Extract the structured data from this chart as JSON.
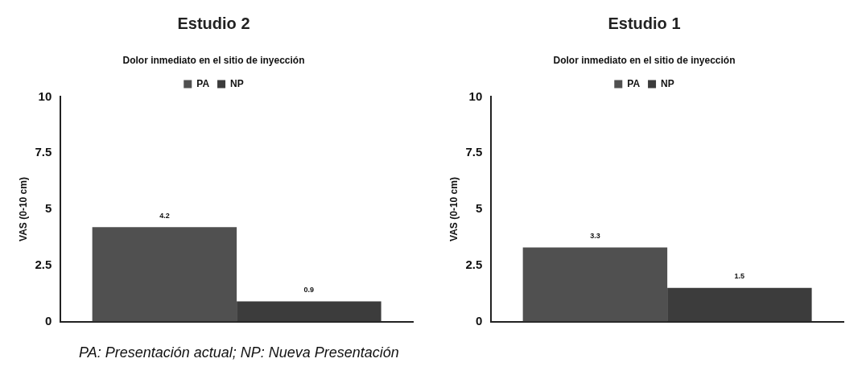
{
  "chart_data": [
    {
      "type": "bar",
      "title": "Estudio 2",
      "subtitle": "Dolor inmediato en el sitio de inyección",
      "ylabel": "VAS (0-10 cm)",
      "categories": [
        null
      ],
      "series": [
        {
          "name": "PA",
          "color": "#505050",
          "values": [
            4.2
          ]
        },
        {
          "name": "NP",
          "color": "#3c3c3c",
          "values": [
            0.9
          ]
        }
      ],
      "ylim": [
        0,
        10
      ],
      "yticks": [
        0,
        2.5,
        5,
        7.5,
        10
      ],
      "grid": false,
      "legend": "top",
      "data_labels": true,
      "annotations": [
        "PA: Presentación actual;  NP: Nueva Presentación"
      ]
    },
    {
      "type": "bar",
      "title": "Estudio 1",
      "subtitle": "Dolor inmediato en el sitio de inyección",
      "ylabel": "VAS (0-10 cm)",
      "categories": [
        null
      ],
      "series": [
        {
          "name": "PA",
          "color": "#505050",
          "values": [
            3.3
          ]
        },
        {
          "name": "NP",
          "color": "#3c3c3c",
          "values": [
            1.5
          ]
        }
      ],
      "ylim": [
        0,
        10
      ],
      "yticks": [
        0,
        2.5,
        5,
        7.5,
        10
      ],
      "grid": false,
      "legend": "top",
      "data_labels": true
    }
  ]
}
